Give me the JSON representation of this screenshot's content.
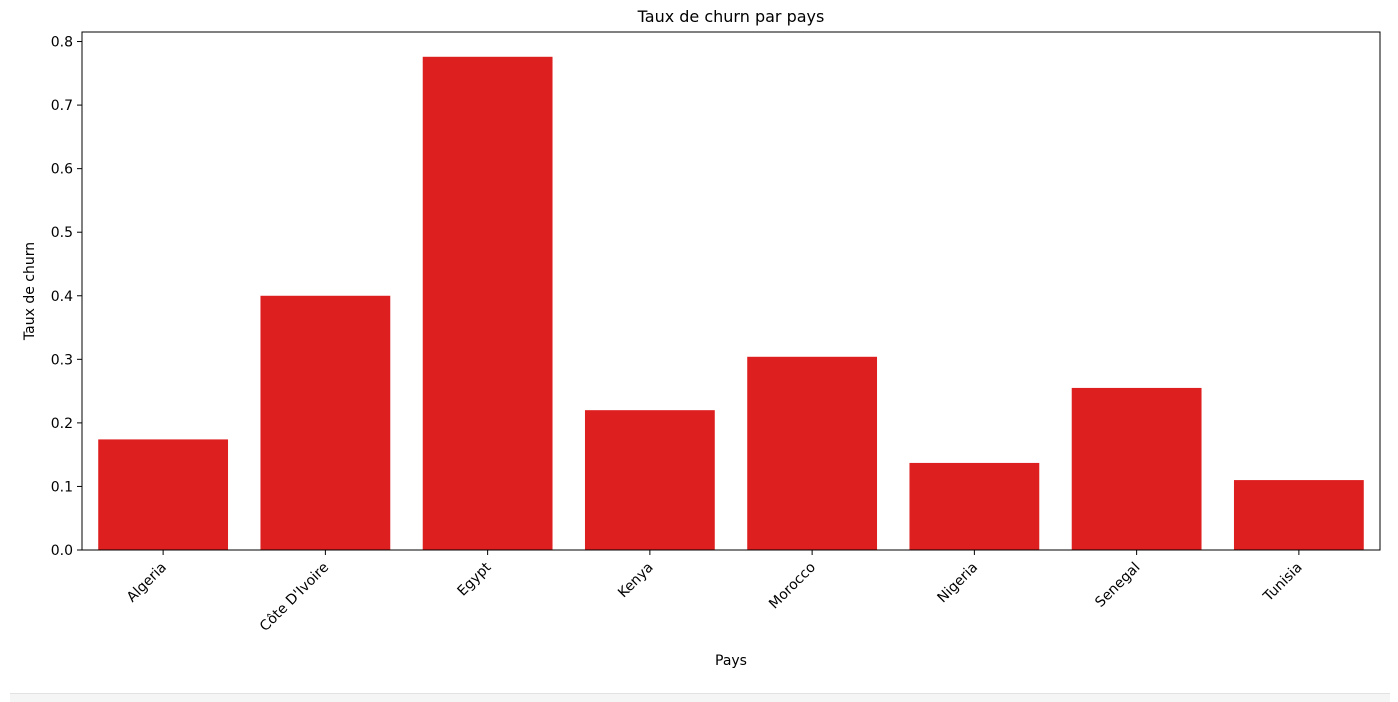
{
  "chart_data": {
    "type": "bar",
    "title": "Taux de churn par pays",
    "xlabel": "Pays",
    "ylabel": "Taux de churn",
    "categories": [
      "Algeria",
      "Côte D'Ivoire",
      "Egypt",
      "Kenya",
      "Morocco",
      "Nigeria",
      "Senegal",
      "Tunisia"
    ],
    "values": [
      0.174,
      0.4,
      0.776,
      0.22,
      0.304,
      0.137,
      0.255,
      0.11
    ],
    "ylim": [
      0,
      0.815
    ],
    "yticks": [
      "0.0",
      "0.1",
      "0.2",
      "0.3",
      "0.4",
      "0.5",
      "0.6",
      "0.7",
      "0.8"
    ],
    "bar_color": "#de1f20",
    "grid": false,
    "legend": "none"
  }
}
